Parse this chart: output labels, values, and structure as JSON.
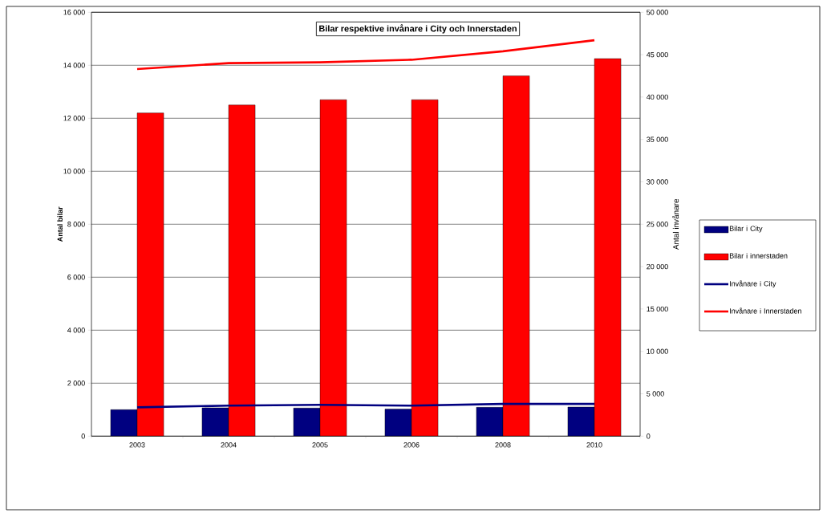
{
  "chart_data": {
    "type": "bar",
    "title": "Bilar respektive invånare i City och Innerstaden",
    "ylabel": "Antal bilar",
    "y2label": "Antal invånare",
    "categories": [
      "2003",
      "2004",
      "2005",
      "2006",
      "2008",
      "2010"
    ],
    "series": [
      {
        "name": "Bilar i City",
        "axis": "y",
        "color": "#000080",
        "values": [
          1000,
          1070,
          1060,
          1020,
          1090,
          1100
        ]
      },
      {
        "name": "Bilar i innerstaden",
        "axis": "y",
        "color": "#ff0000",
        "values": [
          12200,
          12500,
          12700,
          12700,
          13600,
          14250
        ]
      },
      {
        "name": "Invånare i City",
        "type": "line",
        "axis": "y2",
        "color": "#000080",
        "values": [
          3400,
          3600,
          3700,
          3600,
          3800,
          3800
        ]
      },
      {
        "name": "Invånare i Innerstaden",
        "type": "line",
        "axis": "y2",
        "color": "#ff0000",
        "values": [
          43300,
          44000,
          44100,
          44400,
          45400,
          46700
        ]
      }
    ],
    "ylim": [
      0,
      16000
    ],
    "yticks": [
      {
        "value": 0,
        "label": "0"
      },
      {
        "value": 2000,
        "label": "2 000"
      },
      {
        "value": 4000,
        "label": "4 000"
      },
      {
        "value": 6000,
        "label": "6 000"
      },
      {
        "value": 8000,
        "label": "8 000"
      },
      {
        "value": 10000,
        "label": "10 000"
      },
      {
        "value": 12000,
        "label": "12 000"
      },
      {
        "value": 14000,
        "label": "14 000"
      },
      {
        "value": 16000,
        "label": "16 000"
      }
    ],
    "y2lim": [
      0,
      50000
    ],
    "y2ticks": [
      {
        "value": 0,
        "label": "0"
      },
      {
        "value": 5000,
        "label": "5 000"
      },
      {
        "value": 10000,
        "label": "10 000"
      },
      {
        "value": 15000,
        "label": "15 000"
      },
      {
        "value": 20000,
        "label": "20 000"
      },
      {
        "value": 25000,
        "label": "25 000"
      },
      {
        "value": 30000,
        "label": "30 000"
      },
      {
        "value": 35000,
        "label": "35 000"
      },
      {
        "value": 40000,
        "label": "40 000"
      },
      {
        "value": 45000,
        "label": "45 000"
      },
      {
        "value": 50000,
        "label": "50 000"
      }
    ],
    "grid": "y",
    "legend": "right"
  }
}
